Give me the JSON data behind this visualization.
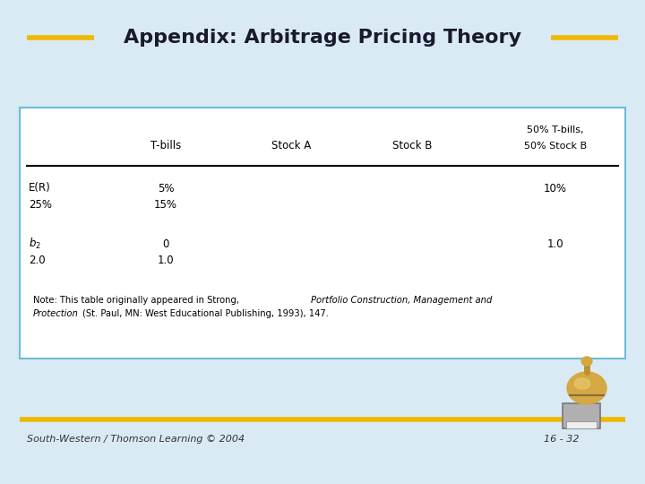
{
  "title": "Appendix: Arbitrage Pricing Theory",
  "bg_color": "#daeaf5",
  "title_color": "#1a1a2e",
  "gold_color": "#f0b800",
  "table_bg": "#ffffff",
  "table_border_color": "#6bbdd4",
  "footer_left": "South-Western / Thomson Learning © 2004",
  "footer_right": "16 - 32",
  "note_plain1": "Note: This table originally appeared in Strong, ",
  "note_italic": "Portfolio Construction, Management and",
  "note_plain2": "Protection",
  "note_plain3": " (St. Paul, MN: West Educational Publishing, 1993), 147."
}
